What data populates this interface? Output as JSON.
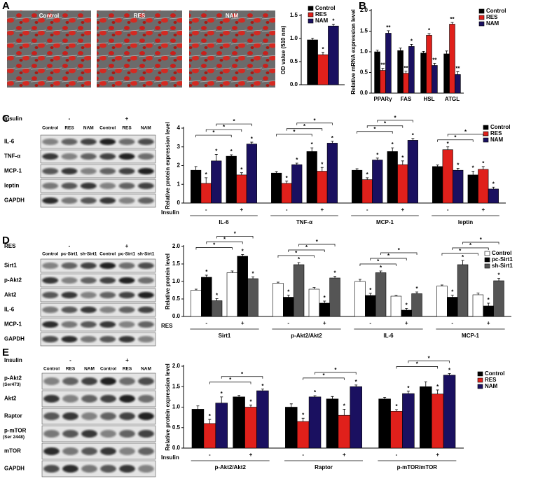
{
  "panel_letters": [
    "A",
    "B",
    "C",
    "D",
    "E"
  ],
  "micrographs": {
    "labels": [
      "Control",
      "RES",
      "NAM"
    ]
  },
  "blots": [
    {
      "group_label": "Insulin",
      "conditions": [
        "-",
        "+"
      ],
      "lanes": [
        "Control",
        "RES",
        "NAM",
        "Control",
        "RES",
        "NAM"
      ],
      "rows": [
        "IL-6",
        "TNF-α",
        "MCP-1",
        "leptin",
        "GAPDH"
      ]
    },
    {
      "group_label": "RES",
      "conditions": [
        "-",
        "+"
      ],
      "lanes": [
        "Control",
        "pc-Sirt1",
        "sh-Sirt1",
        "Control",
        "pc-Sirt1",
        "sh-Sirt1"
      ],
      "rows": [
        "Sirt1",
        "p-Akt2",
        "Akt2",
        "IL-6",
        "MCP-1",
        "GAPDH"
      ]
    },
    {
      "group_label": "Insulin",
      "conditions": [
        "-",
        "+"
      ],
      "lanes": [
        "Control",
        "RES",
        "NAM",
        "Control",
        "RES",
        "NAM"
      ],
      "rows": [
        "p-Akt2",
        "Akt2",
        "Raptor",
        "p-mTOR",
        "mTOR",
        "GAPDH"
      ],
      "row_notes": [
        "(Ser473)",
        null,
        null,
        "(Ser 2448)",
        null,
        null
      ]
    }
  ],
  "chart_data": [
    {
      "type": "bar",
      "y_label": "OD value (510 nm)",
      "categories": [
        null
      ],
      "legend": "top-right",
      "ylim": [
        0,
        1.5
      ],
      "yticks": [
        {
          "value": 0,
          "label": "0.0"
        },
        {
          "value": 0.5,
          "label": "0.5"
        },
        {
          "value": 1,
          "label": "1.0"
        },
        {
          "value": 1.5,
          "label": "1.5"
        }
      ],
      "series": [
        {
          "name": "Control",
          "color": "#000000",
          "values": [
            0.97
          ],
          "errors": [
            0.04
          ],
          "sig": [
            null
          ]
        },
        {
          "name": "RES",
          "color": "#e0201b",
          "values": [
            0.65
          ],
          "errors": [
            0.05
          ],
          "sig": [
            "*"
          ]
        },
        {
          "name": "NAM",
          "color": "#1a1060",
          "values": [
            1.27
          ],
          "errors": [
            0.04
          ],
          "sig": [
            "*"
          ]
        }
      ]
    },
    {
      "type": "bar",
      "y_label": "Relative mRNA expression level",
      "categories": [
        "PPARγ",
        "FAS",
        "HSL",
        "ATGL"
      ],
      "legend": "top-right",
      "ylim": [
        0,
        2
      ],
      "yticks": [
        {
          "value": 0,
          "label": "0.0"
        },
        {
          "value": 0.5,
          "label": "0.5"
        },
        {
          "value": 1,
          "label": "1.0"
        },
        {
          "value": 1.5,
          "label": "1.5"
        },
        {
          "value": 2,
          "label": "2.0"
        }
      ],
      "series": [
        {
          "name": "Control",
          "color": "#000000",
          "values": [
            1.0,
            1.03,
            0.97,
            0.95
          ],
          "errors": [
            0.04,
            0.06,
            0.04,
            0.07
          ],
          "sig": [
            null,
            null,
            null,
            null
          ]
        },
        {
          "name": "RES",
          "color": "#e0201b",
          "values": [
            0.55,
            0.48,
            1.4,
            1.67
          ],
          "errors": [
            0.05,
            0.05,
            0.04,
            0.04
          ],
          "sig": [
            "**",
            "**",
            "*",
            "**"
          ]
        },
        {
          "name": "NAM",
          "color": "#1a1060",
          "values": [
            1.45,
            1.13,
            0.67,
            0.45
          ],
          "errors": [
            0.06,
            0.05,
            0.05,
            0.07
          ],
          "sig": [
            "**",
            "*",
            "**",
            "**"
          ]
        }
      ]
    },
    {
      "type": "bar",
      "y_label": "Relative protein expression level",
      "x_label": "Insulin",
      "groups": [
        "IL-6",
        "TNF-α",
        "MCP-1",
        "leptin"
      ],
      "categories": [
        "-",
        "+",
        "-",
        "+",
        "-",
        "+",
        "-",
        "+"
      ],
      "legend": "top-right",
      "ylim": [
        0,
        4
      ],
      "yticks": [
        0,
        1,
        2,
        3,
        4
      ],
      "series": [
        {
          "name": "Control",
          "color": "#000000",
          "values": [
            1.75,
            2.5,
            1.6,
            2.75,
            1.75,
            2.75,
            1.95,
            1.5
          ],
          "errors": [
            0.2,
            0.08,
            0.08,
            0.2,
            0.08,
            0.2,
            0.08,
            0.2
          ],
          "sig": [
            null,
            "*",
            null,
            "*",
            null,
            "*",
            null,
            "*"
          ]
        },
        {
          "name": "RES",
          "color": "#e0201b",
          "values": [
            1.05,
            1.5,
            1.05,
            1.7,
            1.25,
            2.05,
            2.85,
            1.8
          ],
          "errors": [
            0.3,
            0.12,
            0.12,
            0.2,
            0.1,
            0.2,
            0.15,
            0.15
          ],
          "sig": [
            "*",
            "*",
            "*",
            "*",
            "*",
            "*",
            "*",
            "*"
          ]
        },
        {
          "name": "NAM",
          "color": "#1a1060",
          "values": [
            2.25,
            3.15,
            2.05,
            3.2,
            2.3,
            3.35,
            1.75,
            0.75
          ],
          "errors": [
            0.35,
            0.1,
            0.08,
            0.1,
            0.1,
            0.1,
            0.1,
            0.1
          ],
          "sig": [
            "*",
            "*",
            "*",
            "*",
            "*",
            "*",
            "*",
            "*"
          ]
        }
      ],
      "comparisons": [
        {
          "label": "*",
          "series": "Control",
          "group": "IL-6"
        },
        {
          "label": "*",
          "series": "RES",
          "group": "IL-6"
        },
        {
          "label": "*",
          "series": "NAM",
          "group": "IL-6"
        },
        {
          "label": "*",
          "series": "Control",
          "group": "TNF-α"
        },
        {
          "label": "*",
          "series": "RES",
          "group": "TNF-α"
        },
        {
          "label": "*",
          "series": "NAM",
          "group": "TNF-α"
        },
        {
          "label": "*",
          "series": "Control",
          "group": "MCP-1"
        },
        {
          "label": "*",
          "series": "RES",
          "group": "MCP-1"
        },
        {
          "label": "*",
          "series": "NAM",
          "group": "MCP-1"
        },
        {
          "label": "*",
          "series": "Control",
          "group": "leptin"
        },
        {
          "label": "*",
          "series": "RES",
          "group": "leptin"
        }
      ]
    },
    {
      "type": "bar",
      "y_label": "Relative protein level",
      "x_label": "RES",
      "groups": [
        "Sirt1",
        "p-Akt2/Akt2",
        "IL-6",
        "MCP-1"
      ],
      "categories": [
        "-",
        "+",
        "-",
        "+",
        "-",
        "+",
        "-",
        "+"
      ],
      "legend": "top-right",
      "ylim": [
        0,
        2
      ],
      "yticks": [
        {
          "value": 0,
          "label": "0.0"
        },
        {
          "value": 0.5,
          "label": "0.5"
        },
        {
          "value": 1,
          "label": "1.0"
        },
        {
          "value": 1.5,
          "label": "1.5"
        },
        {
          "value": 2,
          "label": "2.0"
        }
      ],
      "series": [
        {
          "name": "Control",
          "color": "#ffffff",
          "values": [
            0.75,
            1.25,
            0.95,
            0.78,
            1.0,
            0.58,
            0.87,
            0.62
          ],
          "errors": [
            0.03,
            0.05,
            0.03,
            0.05,
            0.06,
            0.02,
            0.03,
            0.05
          ],
          "sig": [
            null,
            null,
            null,
            null,
            null,
            null,
            null,
            null
          ]
        },
        {
          "name": "pc-Sirt1",
          "color": "#000000",
          "values": [
            1.12,
            1.72,
            0.55,
            0.38,
            0.6,
            0.18,
            0.55,
            0.3
          ],
          "errors": [
            0.06,
            0.05,
            0.06,
            0.06,
            0.06,
            0.05,
            0.06,
            0.08
          ],
          "sig": [
            "*",
            "*",
            "*",
            "*",
            "*",
            "*",
            "*",
            "*"
          ]
        },
        {
          "name": "sh-Sirt1",
          "color": "#555555",
          "values": [
            0.45,
            1.08,
            1.48,
            1.1,
            1.25,
            0.65,
            1.48,
            1.02
          ],
          "errors": [
            0.06,
            0.05,
            0.06,
            0.05,
            0.05,
            0.05,
            0.12,
            0.07
          ],
          "sig": [
            "*",
            "*",
            "*",
            "*",
            "*",
            "*",
            "*",
            "*"
          ]
        }
      ],
      "comparisons": [
        {
          "label": "*",
          "series": "Control",
          "group": "Sirt1"
        },
        {
          "label": "*",
          "series": "pc-Sirt1",
          "group": "Sirt1"
        },
        {
          "label": "*",
          "series": "sh-Sirt1",
          "group": "Sirt1"
        },
        {
          "label": "*",
          "series": "Control",
          "group": "p-Akt2/Akt2"
        },
        {
          "label": "*",
          "series": "pc-Sirt1",
          "group": "p-Akt2/Akt2"
        },
        {
          "label": "*",
          "series": "sh-Sirt1",
          "group": "p-Akt2/Akt2"
        },
        {
          "label": "*",
          "series": "Control",
          "group": "IL-6"
        },
        {
          "label": "*",
          "series": "pc-Sirt1",
          "group": "IL-6"
        },
        {
          "label": "*",
          "series": "sh-Sirt1",
          "group": "IL-6"
        },
        {
          "label": "*",
          "series": "Control",
          "group": "MCP-1"
        },
        {
          "label": "*",
          "series": "pc-Sirt1",
          "group": "MCP-1"
        },
        {
          "label": "*",
          "series": "sh-Sirt1",
          "group": "MCP-1"
        }
      ]
    },
    {
      "type": "bar",
      "y_label": "Relative protein expression level",
      "x_label": "Insulin",
      "groups": [
        "p-Akt2/Akt2",
        "Raptor",
        "p-mTOR/mTOR"
      ],
      "categories": [
        "-",
        "+",
        "-",
        "+",
        "-",
        "+"
      ],
      "legend": "top-right",
      "ylim": [
        0,
        2
      ],
      "yticks": [
        {
          "value": 0,
          "label": "0.0"
        },
        {
          "value": 0.5,
          "label": "0.5"
        },
        {
          "value": 1,
          "label": "1.0"
        },
        {
          "value": 1.5,
          "label": "1.5"
        },
        {
          "value": 2,
          "label": "2.0"
        }
      ],
      "series": [
        {
          "name": "Control",
          "color": "#000000",
          "values": [
            0.95,
            1.25,
            1.0,
            1.2,
            1.2,
            1.5
          ],
          "errors": [
            0.08,
            0.04,
            0.08,
            0.06,
            0.04,
            0.12
          ],
          "sig": [
            null,
            null,
            null,
            null,
            null,
            null
          ]
        },
        {
          "name": "RES",
          "color": "#e0201b",
          "values": [
            0.6,
            1.0,
            0.65,
            0.8,
            0.9,
            1.32
          ],
          "errors": [
            0.1,
            0.05,
            0.08,
            0.15,
            0.04,
            0.1
          ],
          "sig": [
            "*",
            "*",
            "*",
            "*",
            "*",
            "*"
          ]
        },
        {
          "name": "NAM",
          "color": "#1a1060",
          "values": [
            1.1,
            1.4,
            1.25,
            1.5,
            1.33,
            1.78
          ],
          "errors": [
            0.15,
            0.04,
            0.03,
            0.04,
            0.06,
            0.04
          ],
          "sig": [
            "*",
            "*",
            "*",
            "*",
            "*",
            "*"
          ]
        }
      ],
      "comparisons": [
        {
          "label": "*",
          "series": "RES",
          "group": "p-Akt2/Akt2"
        },
        {
          "label": "*",
          "series": "NAM",
          "group": "p-Akt2/Akt2"
        },
        {
          "label": "*",
          "series": "RES",
          "group": "Raptor"
        },
        {
          "label": "*",
          "series": "NAM",
          "group": "Raptor"
        },
        {
          "label": "*",
          "series": "RES",
          "group": "p-mTOR/mTOR"
        },
        {
          "label": "*",
          "series": "NAM",
          "group": "p-mTOR/mTOR"
        }
      ]
    }
  ]
}
